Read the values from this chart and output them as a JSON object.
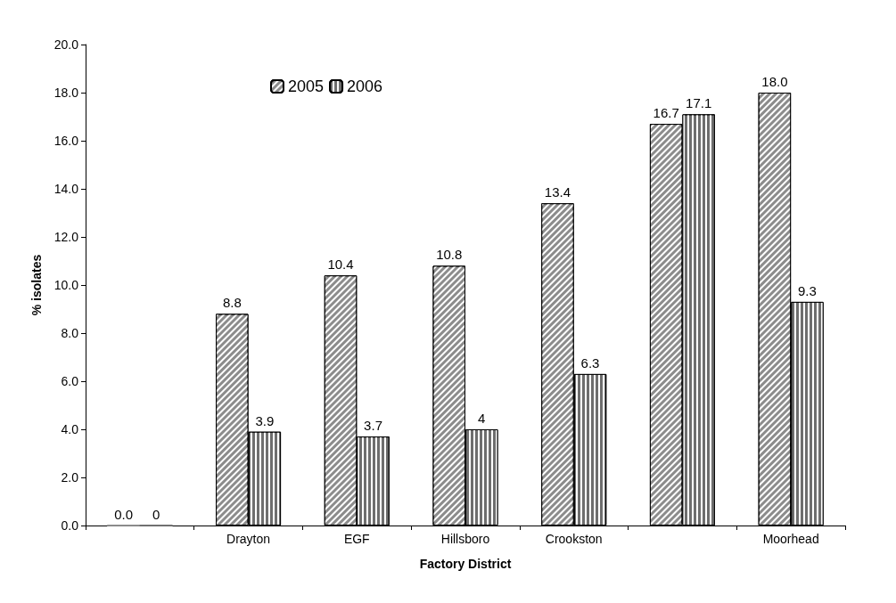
{
  "chart_data": {
    "type": "bar",
    "xlabel": "Factory District",
    "ylabel": "% isolates",
    "categories": [
      null,
      "Drayton",
      "EGF",
      "Hillsboro",
      "Crookston",
      null,
      "Moorhead"
    ],
    "series": [
      {
        "name": "2005",
        "color": "#8c8c8c",
        "values": [
          0,
          8.8,
          10.4,
          10.8,
          13.4,
          16.7,
          18.0
        ],
        "value_labels": [
          "0.0",
          "8.8",
          "10.4",
          "10.8",
          "13.4",
          "16.7",
          "18.0"
        ]
      },
      {
        "name": "2006",
        "color": "#6e6e6e",
        "values": [
          0,
          3.9,
          3.7,
          4,
          6.3,
          17.1,
          9.3
        ],
        "value_labels": [
          "0",
          "3.9",
          "3.7",
          "4",
          "6.3",
          "17.1",
          "9.3"
        ]
      }
    ],
    "ylim": [
      0,
      20
    ],
    "yticks": [
      {
        "value": 0,
        "label": "0.0"
      },
      {
        "value": 2,
        "label": "2.0"
      },
      {
        "value": 4,
        "label": "4.0"
      },
      {
        "value": 6,
        "label": "6.0"
      },
      {
        "value": 8,
        "label": "8.0"
      },
      {
        "value": 10,
        "label": "10.0"
      },
      {
        "value": 12,
        "label": "12.0"
      },
      {
        "value": 14,
        "label": "14.0"
      },
      {
        "value": 16,
        "label": "16.0"
      },
      {
        "value": 18,
        "label": "18.0"
      },
      {
        "value": 20,
        "label": "20.0"
      }
    ],
    "grid": false,
    "legend": "top left"
  }
}
